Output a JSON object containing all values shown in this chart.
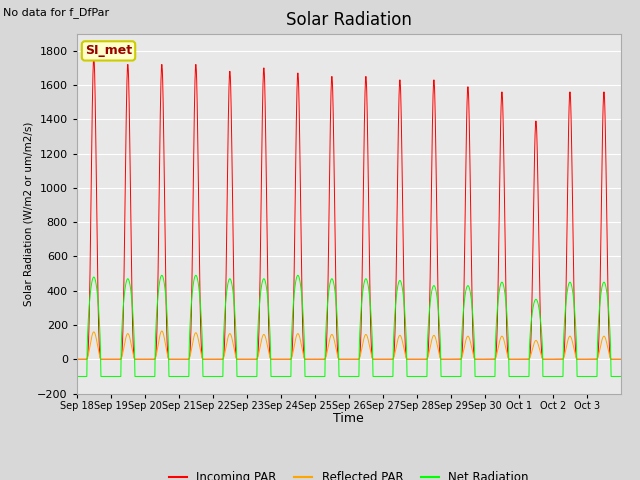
{
  "title": "Solar Radiation",
  "subtitle": "No data for f_DfPar",
  "ylabel": "Solar Radiation (W/m2 or um/m2/s)",
  "xlabel": "Time",
  "ylim": [
    -200,
    1900
  ],
  "yticks": [
    -200,
    0,
    200,
    400,
    600,
    800,
    1000,
    1200,
    1400,
    1600,
    1800
  ],
  "background_color": "#d8d8d8",
  "plot_bg_color": "#e8e8e8",
  "legend_entries": [
    "Incoming PAR",
    "Reflected PAR",
    "Net Radiation"
  ],
  "station_label": "SI_met",
  "n_days": 16,
  "peaks_incoming": [
    1760,
    1720,
    1720,
    1720,
    1680,
    1700,
    1670,
    1650,
    1650,
    1630,
    1630,
    1590,
    1560,
    1390,
    1560,
    1560
  ],
  "peaks_net": [
    480,
    470,
    490,
    490,
    470,
    470,
    490,
    470,
    470,
    460,
    430,
    430,
    450,
    350,
    450,
    450
  ],
  "peaks_reflected": [
    160,
    150,
    165,
    155,
    150,
    145,
    150,
    145,
    145,
    140,
    140,
    135,
    135,
    110,
    135,
    135
  ],
  "tick_labels": [
    "Sep 18",
    "Sep 19",
    "Sep 20",
    "Sep 21",
    "Sep 22",
    "Sep 23",
    "Sep 24",
    "Sep 25",
    "Sep 26",
    "Sep 27",
    "Sep 28",
    "Sep 29",
    "Sep 30",
    "Oct 1",
    "Oct 2",
    "Oct 3"
  ]
}
